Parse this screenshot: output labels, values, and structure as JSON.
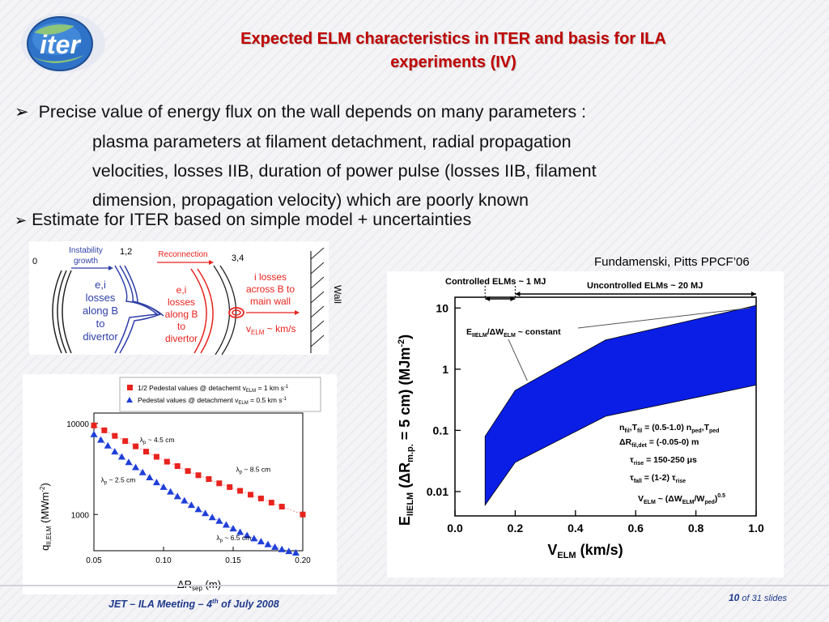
{
  "title": {
    "line1": "Expected ELM characteristics in ITER and basis for ILA",
    "line2": "experiments (IV)"
  },
  "logo": {
    "text": "iter"
  },
  "bullets": {
    "b1_line1": "Precise value of energy flux on the wall depends on many parameters :",
    "b1_line2": "plasma parameters at filament detachment, radial propagation",
    "b1_line3": "velocities, losses IIB, duration of power pulse (losses IIB, filament",
    "b1_line4": "dimension, propagation velocity) which are poorly known",
    "b2": "Estimate for ITER based on simple model + uncertainties"
  },
  "diagram": {
    "label_0": "0",
    "label_12": "1,2",
    "label_34": "3,4",
    "instability_growth": [
      "Instability",
      "growth"
    ],
    "reconnection": "Reconnection",
    "left_text": [
      "e,i",
      "losses",
      "along B",
      "to",
      "divertor"
    ],
    "mid_text": [
      "e,i",
      "losses",
      "along B",
      "to",
      "divertor"
    ],
    "right_text": [
      "i losses",
      "across B to",
      "main wall"
    ],
    "velocity_label": "v",
    "velocity_sub": "ELM",
    "velocity_unit": " ~ km/s",
    "wall_label": "Wall",
    "colors": {
      "red": "#e8231e",
      "blue": "#2f3fa8",
      "dark": "#222222"
    }
  },
  "source": "Fundamenski, Pitts PPCF’06",
  "chart_data": [
    {
      "type": "scatter",
      "title": "",
      "ylabel": "q",
      "ylabel_sub": "II,ELM",
      "ylabel_unit": " (MWm",
      "ylabel_sup": "-2",
      "ylabel_end": ")",
      "xlabel": "ΔR",
      "xlabel_sub": "sep",
      "xlabel_unit": " (m)",
      "xlim": [
        0.05,
        0.2
      ],
      "ylim": [
        400,
        13000
      ],
      "y_scale": "log",
      "x_ticks": [
        "0.05",
        "0.10",
        "0.15",
        "0.20"
      ],
      "y_ticks": [
        "10000",
        "1000"
      ],
      "legend": [
        {
          "text": "1/2 Pedestal values @ detachemt v",
          "sub": "ELM",
          "tail": " = 1 km s",
          "sup": "-1",
          "marker": "square",
          "color": "#e8231e"
        },
        {
          "text": "Pedestal values @ detachment v",
          "sub": "ELM",
          "tail": " = 0.5 km s",
          "sup": "-1",
          "marker": "triangle",
          "color": "#1f3fd8"
        }
      ],
      "series": [
        {
          "marker": "square",
          "color": "#e8231e",
          "x": [
            0.05,
            0.0575,
            0.065,
            0.0725,
            0.08,
            0.0875,
            0.095,
            0.1025,
            0.11,
            0.1175,
            0.125,
            0.1325,
            0.14,
            0.1475,
            0.155,
            0.1625,
            0.17,
            0.1775,
            0.185,
            0.2
          ],
          "y": [
            9500,
            8400,
            7300,
            6400,
            5600,
            4900,
            4300,
            3800,
            3400,
            3000,
            2700,
            2450,
            2200,
            2000,
            1820,
            1650,
            1500,
            1350,
            1220,
            1000
          ]
        },
        {
          "marker": "triangle",
          "color": "#1f3fd8",
          "x": [
            0.05,
            0.055,
            0.06,
            0.065,
            0.07,
            0.075,
            0.08,
            0.085,
            0.09,
            0.095,
            0.1,
            0.105,
            0.11,
            0.115,
            0.12,
            0.125,
            0.13,
            0.135,
            0.14,
            0.145,
            0.15,
            0.155,
            0.16,
            0.165,
            0.17,
            0.175,
            0.18,
            0.185,
            0.19,
            0.195
          ],
          "y": [
            7600,
            6600,
            5700,
            4900,
            4300,
            3750,
            3300,
            2900,
            2550,
            2250,
            2000,
            1780,
            1580,
            1420,
            1270,
            1140,
            1030,
            930,
            850,
            770,
            700,
            640,
            590,
            545,
            505,
            470,
            440,
            415,
            395,
            380
          ]
        }
      ],
      "annotations": [
        {
          "text": "λ",
          "sub": "p",
          "tail": " ~ 4.5 cm",
          "x": 0.083,
          "y": 6200
        },
        {
          "text": "λ",
          "sub": "p",
          "tail": " ~ 2.5 cm",
          "x": 0.055,
          "y": 2250
        },
        {
          "text": "λ",
          "sub": "p",
          "tail": " ~ 8.5 cm",
          "x": 0.152,
          "y": 2950
        },
        {
          "text": "λ",
          "sub": "p",
          "tail": " ~ 6.5 cm",
          "x": 0.138,
          "y": 520
        }
      ]
    },
    {
      "type": "area",
      "title": "",
      "xlabel": "V",
      "xlabel_sub": "ELM",
      "xlabel_unit": " (km/s)",
      "ylabel": "E",
      "ylabel_sub": "IIELM",
      "ylabel_mid": " (ΔR",
      "ylabel_mid_sub": "m.p.",
      "ylabel_end": " = 5 cm) (MJm",
      "ylabel_sup": "-2",
      "ylabel_close": ")",
      "xlim": [
        0.0,
        1.0
      ],
      "ylim": [
        0.004,
        15
      ],
      "y_scale": "log",
      "x_ticks": [
        "0.0",
        "0.2",
        "0.4",
        "0.6",
        "0.8",
        "1.0"
      ],
      "y_ticks": [
        "10",
        "1",
        "0.1",
        "0.01"
      ],
      "upper": {
        "x": [
          0.1,
          0.2,
          0.5,
          1.0
        ],
        "y": [
          0.08,
          0.45,
          3.0,
          11.0
        ]
      },
      "lower": {
        "x": [
          0.1,
          0.2,
          0.5,
          1.0
        ],
        "y": [
          0.006,
          0.03,
          0.17,
          0.55
        ]
      },
      "fill_color": "#0a1ee6",
      "controlled_label": "Controlled ELMs ~ 1 MJ",
      "uncontrolled_label": "Uncontrolled ELMs ~ 20 MJ",
      "constant_label": {
        "a": "E",
        "a_sub": "IIELM",
        "b": "/ΔW",
        "b_sub": "ELM",
        "c": " ~ constant"
      },
      "params": [
        {
          "t": "n",
          "s": "fil",
          "m": ",T",
          "s2": "fil",
          "e": " = (0.5-1.0) n",
          "s3": "ped",
          "f": ",T",
          "s4": "ped"
        },
        {
          "t": "ΔR",
          "s": "fil,det",
          "e": " = (-0.05-0) m"
        },
        {
          "t": "τ",
          "s": "rise",
          "e": " = 150-250 μs"
        },
        {
          "t": "τ",
          "s": "fall",
          "e": " = (1-2) τ",
          "s3": "rise"
        },
        {
          "t": "V",
          "s": "ELM",
          "e": " ~ (ΔW",
          "s3": "ELM",
          "f": "/W",
          "s4": "ped",
          "g": ")",
          "sup": "0.5"
        }
      ]
    }
  ],
  "footer": {
    "left_a": "JET – ILA Meeting – 4",
    "left_sup": "th",
    "left_b": " of July 2008",
    "slide_num": "10",
    "slide_of": " of 31  slides"
  }
}
